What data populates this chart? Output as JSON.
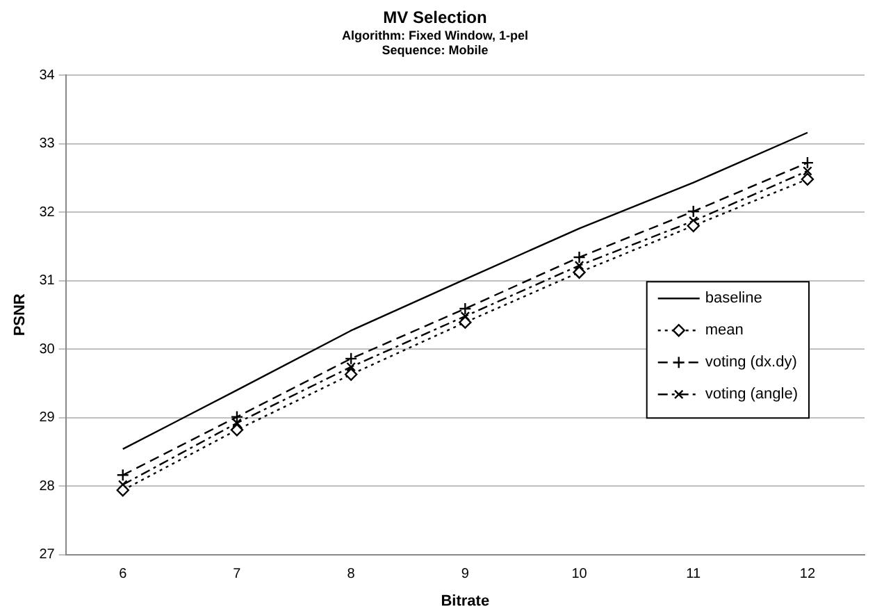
{
  "chart_data": {
    "type": "line",
    "title": "MV Selection",
    "subtitle": [
      "Algorithm: Fixed Window, 1-pel",
      "Sequence: Mobile"
    ],
    "xlabel": "Bitrate",
    "ylabel": "PSNR",
    "categories": [
      "6",
      "7",
      "8",
      "9",
      "10",
      "11",
      "12"
    ],
    "ylim": [
      27,
      34
    ],
    "yticks": [
      27,
      28,
      29,
      30,
      31,
      32,
      33,
      34
    ],
    "grid": "y",
    "legend": "right",
    "series": [
      {
        "name": "baseline",
        "color": "#000000",
        "marker": "none",
        "line_style": "solid",
        "values": [
          28.54,
          29.4,
          30.27,
          31.02,
          31.76,
          32.43,
          33.16
        ]
      },
      {
        "name": "mean",
        "color": "#000000",
        "marker": "diamond",
        "line_style": "dotted",
        "values": [
          27.94,
          28.82,
          29.63,
          30.39,
          31.12,
          31.8,
          32.48
        ]
      },
      {
        "name": "voting (dx.dy)",
        "color": "#000000",
        "marker": "cross",
        "line_style": "dashed",
        "values": [
          28.16,
          29.01,
          29.86,
          30.59,
          31.34,
          32.01,
          32.72
        ]
      },
      {
        "name": "voting (angle)",
        "color": "#000000",
        "marker": "x",
        "line_style": "dashdot",
        "values": [
          28.02,
          28.92,
          29.74,
          30.48,
          31.22,
          31.87,
          32.6
        ]
      }
    ]
  }
}
